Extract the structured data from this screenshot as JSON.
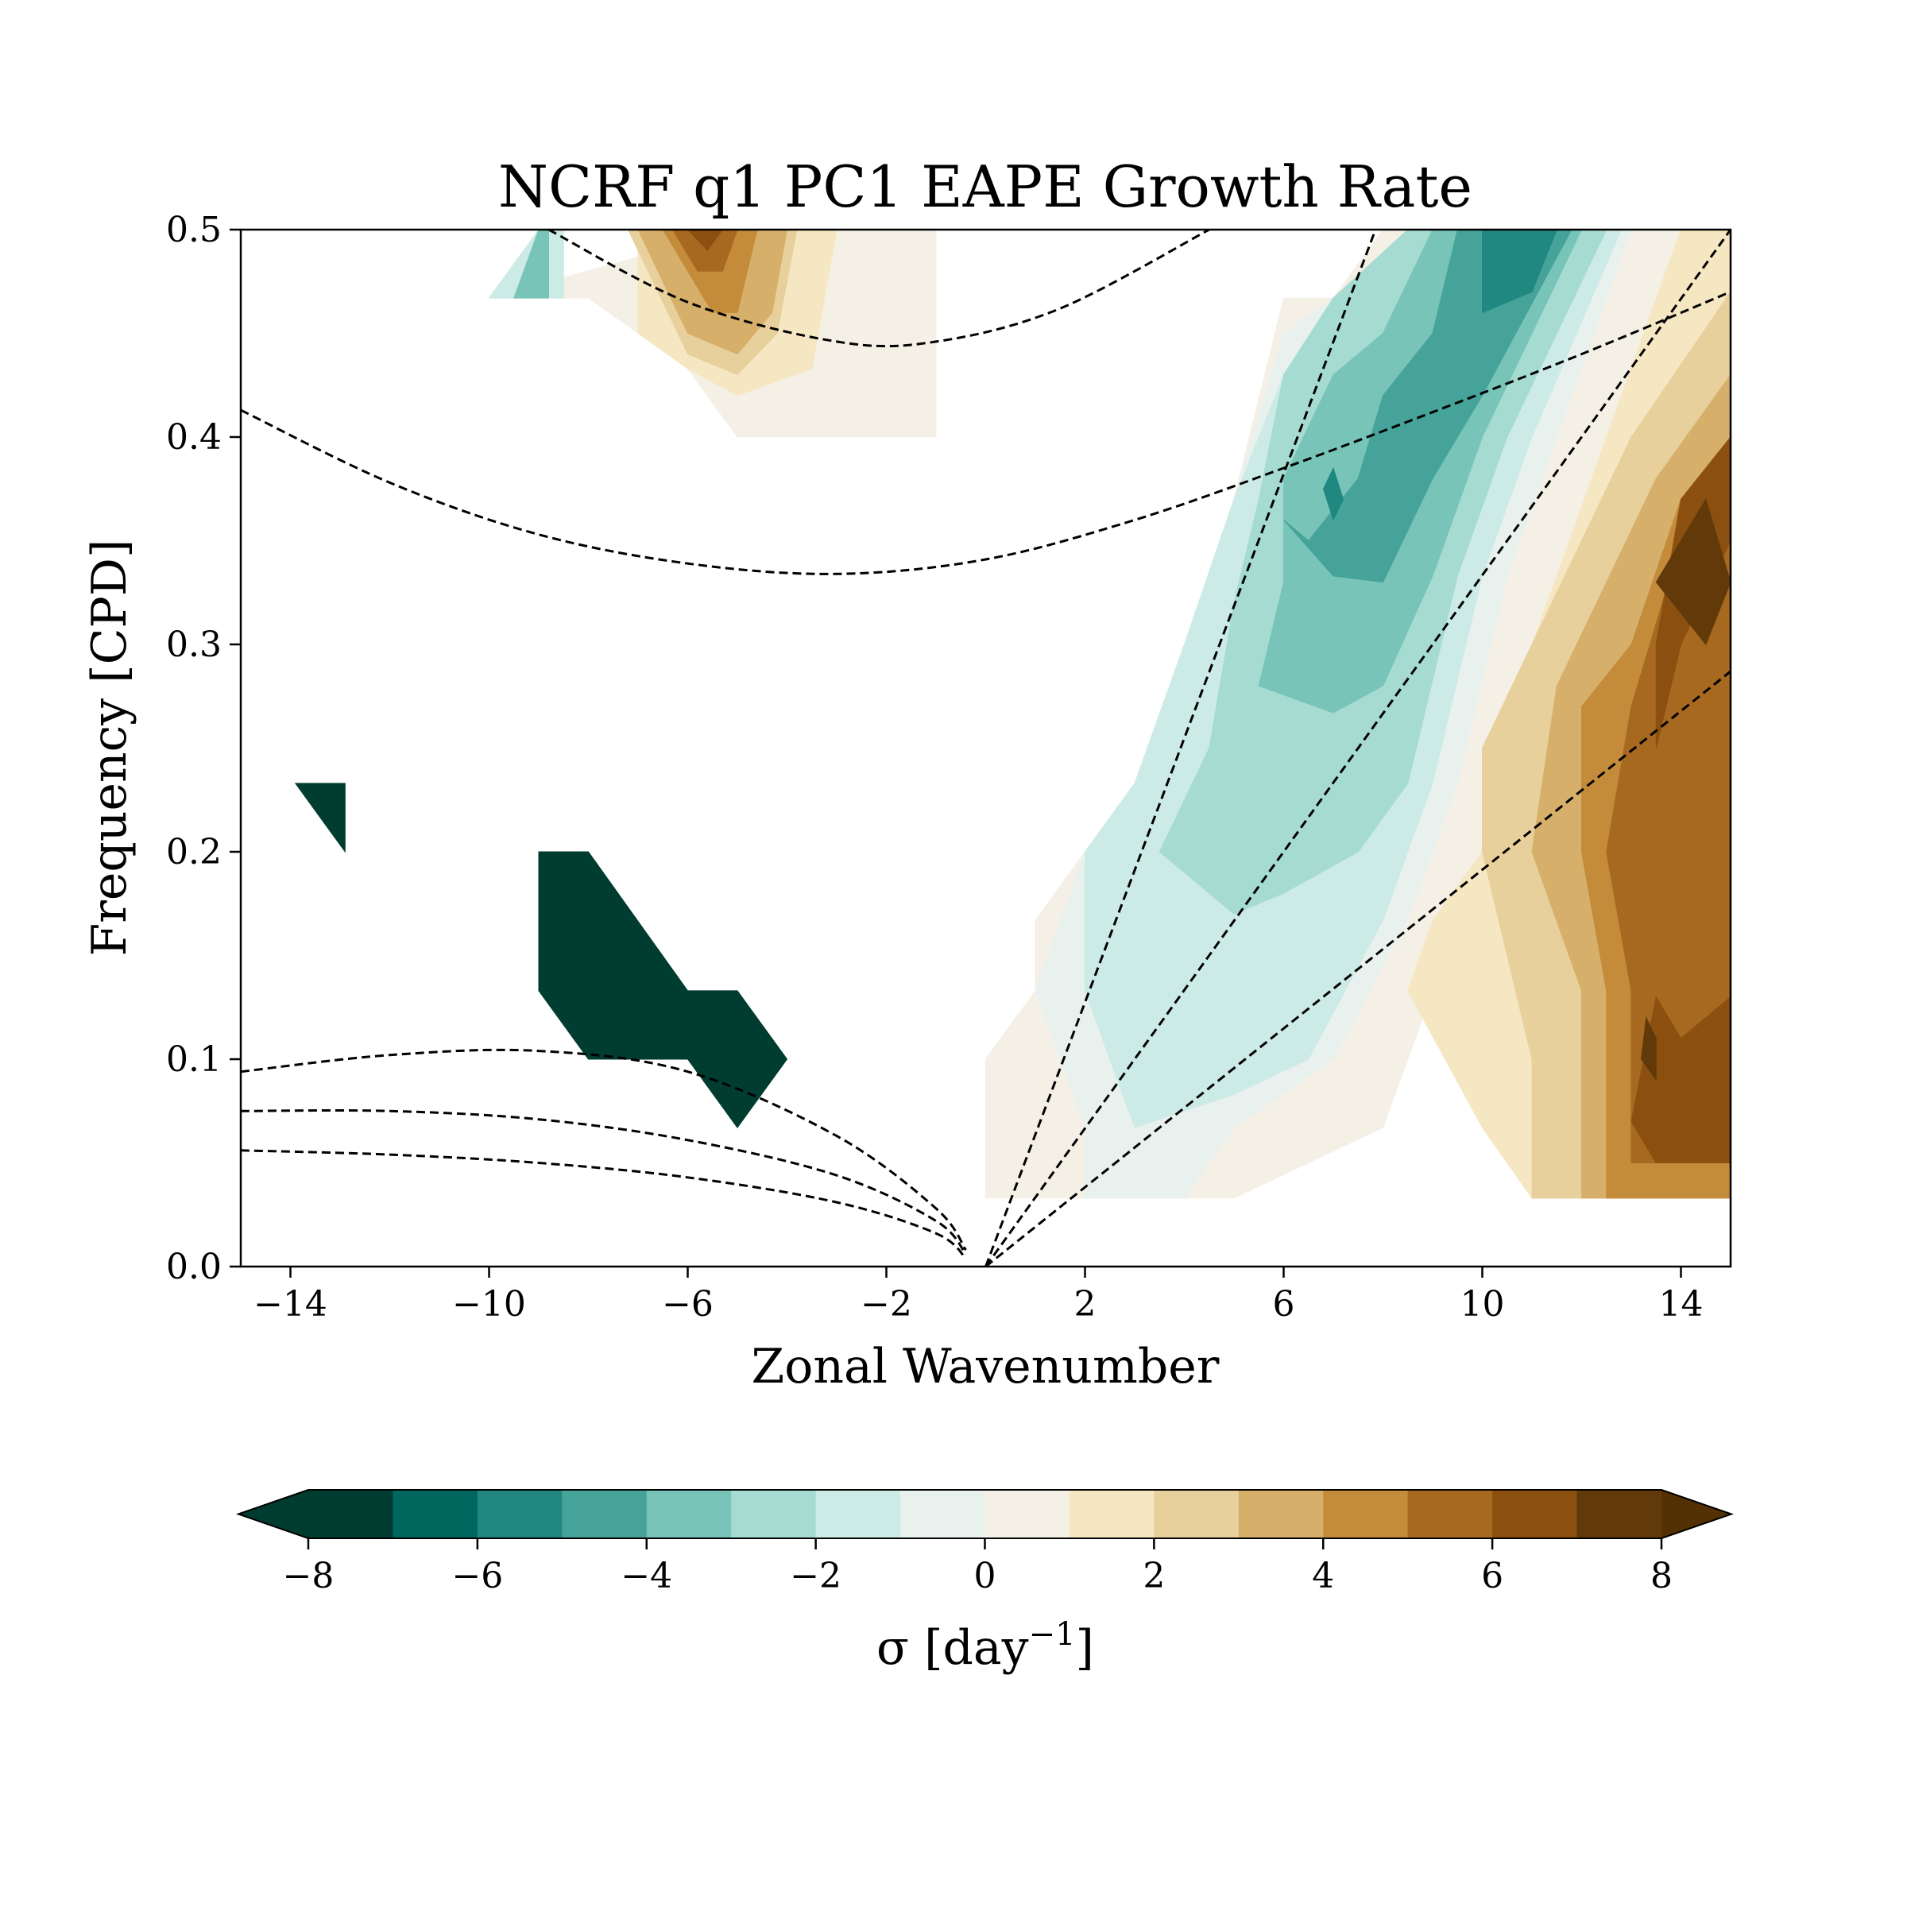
{
  "chart_data": {
    "type": "heatmap",
    "title": "NCRF q1 PC1 EAPE Growth Rate",
    "xlabel": "Zonal Wavenumber",
    "ylabel": "Frequency [CPD]",
    "xlim": [
      -15,
      15
    ],
    "ylim": [
      0.0,
      0.5
    ],
    "xticks": [
      -14,
      -10,
      -6,
      -2,
      2,
      6,
      10,
      14
    ],
    "xtick_labels": [
      "−14",
      "−10",
      "−6",
      "−2",
      "2",
      "6",
      "10",
      "14"
    ],
    "yticks": [
      0.0,
      0.1,
      0.2,
      0.3,
      0.4,
      0.5
    ],
    "ytick_labels": [
      "0.0",
      "0.1",
      "0.2",
      "0.3",
      "0.4",
      "0.5"
    ],
    "grid": false,
    "colorbar": {
      "label": "σ [day",
      "label_exponent": "−1",
      "label_close": "]",
      "levels": [
        -8,
        -7,
        -6,
        -5,
        -4,
        -3,
        -2,
        -1,
        0,
        1,
        2,
        3,
        4,
        5,
        6,
        7,
        8
      ],
      "ticks": [
        -8,
        -6,
        -4,
        -2,
        0,
        2,
        4,
        6,
        8
      ],
      "tick_labels": [
        "−8",
        "−6",
        "−4",
        "−2",
        "0",
        "2",
        "4",
        "6",
        "8"
      ],
      "colors": [
        "#003c30",
        "#01665e",
        "#208781",
        "#45a39a",
        "#78c4b9",
        "#a6dbd1",
        "#cdebe6",
        "#e9f1ef",
        "#f4f0e6",
        "#f6e7c3",
        "#e8d09c",
        "#d6b06b",
        "#c38b3a",
        "#a76820",
        "#8b5010",
        "#623a0a"
      ],
      "extend_low_color": "#003c30",
      "extend_high_color": "#543005",
      "extend": "both",
      "orientation": "horizontal"
    },
    "dispersion_curves_style": "dashed black",
    "field_regions": [
      {
        "value": -7.5,
        "points": [
          [
            -13.9,
            0.233
          ],
          [
            -12.9,
            0.233
          ],
          [
            -12.9,
            0.2
          ],
          [
            -13.9,
            0.233
          ]
        ]
      },
      {
        "value": -7.5,
        "points": [
          [
            -9.0,
            0.2
          ],
          [
            -8.0,
            0.2
          ],
          [
            -6.0,
            0.133
          ],
          [
            -5.0,
            0.133
          ],
          [
            -4.0,
            0.1
          ],
          [
            -5.0,
            0.067
          ],
          [
            -6.0,
            0.1
          ],
          [
            -8.0,
            0.1
          ],
          [
            -9.0,
            0.133
          ]
        ]
      },
      {
        "value": 0.5,
        "points": [
          [
            0.0,
            0.033
          ],
          [
            0.0,
            0.1
          ],
          [
            1.0,
            0.133
          ],
          [
            1.0,
            0.167
          ],
          [
            2.0,
            0.2
          ],
          [
            3.0,
            0.233
          ],
          [
            4.0,
            0.3
          ],
          [
            5.0,
            0.37
          ],
          [
            6.0,
            0.467
          ],
          [
            7.0,
            0.467
          ],
          [
            8.0,
            0.5
          ],
          [
            15.0,
            0.5
          ],
          [
            15.0,
            0.033
          ],
          [
            11.0,
            0.033
          ],
          [
            11.0,
            0.067
          ],
          [
            10.0,
            0.1
          ],
          [
            9.0,
            0.133
          ],
          [
            8.0,
            0.067
          ],
          [
            5.0,
            0.033
          ]
        ]
      },
      {
        "value": -0.5,
        "points": [
          [
            2.0,
            0.033
          ],
          [
            2.0,
            0.067
          ],
          [
            1.0,
            0.133
          ],
          [
            2.0,
            0.2
          ],
          [
            3.0,
            0.233
          ],
          [
            4.0,
            0.3
          ],
          [
            5.0,
            0.37
          ],
          [
            6.0,
            0.45
          ],
          [
            7.0,
            0.467
          ],
          [
            8.5,
            0.5
          ],
          [
            13.0,
            0.5
          ],
          [
            11.5,
            0.4
          ],
          [
            10.5,
            0.333
          ],
          [
            9.5,
            0.233
          ],
          [
            8.5,
            0.167
          ],
          [
            7.0,
            0.1
          ],
          [
            5.0,
            0.067
          ],
          [
            4.0,
            0.033
          ]
        ]
      },
      {
        "value": -1.5,
        "points": [
          [
            3.0,
            0.067
          ],
          [
            2.0,
            0.133
          ],
          [
            2.0,
            0.2
          ],
          [
            3.0,
            0.233
          ],
          [
            4.0,
            0.3
          ],
          [
            5.0,
            0.37
          ],
          [
            6.0,
            0.43
          ],
          [
            7.0,
            0.467
          ],
          [
            8.5,
            0.5
          ],
          [
            12.8,
            0.5
          ],
          [
            11.0,
            0.4
          ],
          [
            10.0,
            0.333
          ],
          [
            9.0,
            0.233
          ],
          [
            8.0,
            0.167
          ],
          [
            6.5,
            0.1
          ],
          [
            5.0,
            0.083
          ]
        ]
      },
      {
        "value": -2.5,
        "points": [
          [
            3.5,
            0.2
          ],
          [
            4.5,
            0.25
          ],
          [
            5.0,
            0.32
          ],
          [
            5.5,
            0.37
          ],
          [
            6.0,
            0.43
          ],
          [
            7.0,
            0.467
          ],
          [
            8.5,
            0.5
          ],
          [
            12.5,
            0.5
          ],
          [
            10.5,
            0.4
          ],
          [
            9.5,
            0.333
          ],
          [
            8.5,
            0.233
          ],
          [
            7.5,
            0.2
          ],
          [
            6.0,
            0.18
          ],
          [
            5.0,
            0.17
          ]
        ]
      },
      {
        "value": -3.5,
        "points": [
          [
            5.5,
            0.28
          ],
          [
            6.0,
            0.33
          ],
          [
            6.0,
            0.38
          ],
          [
            7.0,
            0.43
          ],
          [
            8.0,
            0.45
          ],
          [
            9.0,
            0.5
          ],
          [
            12.0,
            0.5
          ],
          [
            10.0,
            0.4
          ],
          [
            9.0,
            0.333
          ],
          [
            8.0,
            0.28
          ],
          [
            7.0,
            0.267
          ]
        ]
      },
      {
        "value": -4.5,
        "points": [
          [
            6.0,
            0.36
          ],
          [
            6.5,
            0.35
          ],
          [
            7.5,
            0.38
          ],
          [
            8.0,
            0.42
          ],
          [
            9.0,
            0.45
          ],
          [
            9.5,
            0.5
          ],
          [
            11.8,
            0.5
          ],
          [
            10.0,
            0.42
          ],
          [
            9.0,
            0.38
          ],
          [
            8.0,
            0.33
          ],
          [
            7.0,
            0.333
          ]
        ]
      },
      {
        "value": -5.5,
        "points": [
          [
            10.0,
            0.5
          ],
          [
            11.5,
            0.5
          ],
          [
            11.0,
            0.47
          ],
          [
            10.0,
            0.46
          ]
        ]
      },
      {
        "value": -5.5,
        "points": [
          [
            6.8,
            0.375
          ],
          [
            7.0,
            0.385
          ],
          [
            7.2,
            0.37
          ],
          [
            7.0,
            0.36
          ]
        ]
      },
      {
        "value": 1.5,
        "points": [
          [
            8.5,
            0.133
          ],
          [
            10.0,
            0.067
          ],
          [
            11.0,
            0.033
          ],
          [
            15.0,
            0.033
          ],
          [
            15.0,
            0.5
          ],
          [
            14.0,
            0.5
          ],
          [
            12.5,
            0.4
          ],
          [
            11.5,
            0.333
          ],
          [
            10.5,
            0.267
          ],
          [
            10.0,
            0.2
          ],
          [
            9.0,
            0.167
          ]
        ]
      },
      {
        "value": 2.5,
        "points": [
          [
            10.0,
            0.2
          ],
          [
            11.0,
            0.1
          ],
          [
            11.0,
            0.033
          ],
          [
            15.0,
            0.033
          ],
          [
            15.0,
            0.47
          ],
          [
            13.0,
            0.4
          ],
          [
            12.0,
            0.35
          ],
          [
            11.0,
            0.3
          ],
          [
            10.0,
            0.25
          ]
        ]
      },
      {
        "value": 3.5,
        "points": [
          [
            11.0,
            0.2
          ],
          [
            12.0,
            0.133
          ],
          [
            12.0,
            0.033
          ],
          [
            15.0,
            0.033
          ],
          [
            15.0,
            0.43
          ],
          [
            13.5,
            0.38
          ],
          [
            12.5,
            0.33
          ],
          [
            11.5,
            0.28
          ]
        ]
      },
      {
        "value": 4.5,
        "points": [
          [
            12.0,
            0.2
          ],
          [
            12.5,
            0.133
          ],
          [
            12.5,
            0.033
          ],
          [
            15.0,
            0.033
          ],
          [
            15.0,
            0.4
          ],
          [
            14.0,
            0.37
          ],
          [
            13.0,
            0.3
          ],
          [
            12.0,
            0.27
          ]
        ]
      },
      {
        "value": 5.5,
        "points": [
          [
            12.5,
            0.2
          ],
          [
            13.0,
            0.133
          ],
          [
            13.0,
            0.05
          ],
          [
            15.0,
            0.05
          ],
          [
            15.0,
            0.38
          ],
          [
            14.0,
            0.35
          ],
          [
            13.0,
            0.27
          ]
        ]
      },
      {
        "value": 6.5,
        "points": [
          [
            13.0,
            0.07
          ],
          [
            13.5,
            0.05
          ],
          [
            15.0,
            0.05
          ],
          [
            15.0,
            0.13
          ],
          [
            14.0,
            0.11
          ],
          [
            13.5,
            0.13
          ]
        ]
      },
      {
        "value": 6.5,
        "points": [
          [
            13.5,
            0.25
          ],
          [
            14.0,
            0.3
          ],
          [
            15.0,
            0.35
          ],
          [
            15.0,
            0.4
          ],
          [
            14.0,
            0.37
          ],
          [
            13.5,
            0.3
          ]
        ]
      },
      {
        "value": 7.5,
        "points": [
          [
            13.2,
            0.1
          ],
          [
            13.5,
            0.09
          ],
          [
            13.5,
            0.11
          ],
          [
            13.3,
            0.12
          ]
        ]
      },
      {
        "value": 7.5,
        "points": [
          [
            13.5,
            0.33
          ],
          [
            14.5,
            0.3
          ],
          [
            15.0,
            0.33
          ],
          [
            14.5,
            0.37
          ],
          [
            14.0,
            0.35
          ]
        ]
      },
      {
        "value": 0.5,
        "points": [
          [
            -10.0,
            0.467
          ],
          [
            -5.0,
            0.5
          ],
          [
            -1.0,
            0.5
          ],
          [
            -1.0,
            0.4
          ],
          [
            -5.0,
            0.4
          ],
          [
            -6.0,
            0.433
          ],
          [
            -8.0,
            0.467
          ]
        ]
      },
      {
        "value": 1.5,
        "points": [
          [
            -7.0,
            0.5
          ],
          [
            -3.0,
            0.5
          ],
          [
            -3.5,
            0.433
          ],
          [
            -5.0,
            0.42
          ],
          [
            -6.0,
            0.433
          ],
          [
            -7.0,
            0.45
          ]
        ]
      },
      {
        "value": 2.5,
        "points": [
          [
            -7.2,
            0.5
          ],
          [
            -3.8,
            0.5
          ],
          [
            -4.2,
            0.45
          ],
          [
            -5.0,
            0.43
          ],
          [
            -6.0,
            0.44
          ]
        ]
      },
      {
        "value": 3.5,
        "points": [
          [
            -7.0,
            0.5
          ],
          [
            -4.0,
            0.5
          ],
          [
            -4.3,
            0.46
          ],
          [
            -5.0,
            0.44
          ],
          [
            -6.0,
            0.45
          ]
        ]
      },
      {
        "value": 4.5,
        "points": [
          [
            -6.5,
            0.5
          ],
          [
            -4.6,
            0.5
          ],
          [
            -5.0,
            0.46
          ],
          [
            -5.5,
            0.46
          ]
        ]
      },
      {
        "value": 5.5,
        "points": [
          [
            -6.3,
            0.5
          ],
          [
            -5.0,
            0.5
          ],
          [
            -5.3,
            0.48
          ],
          [
            -5.8,
            0.48
          ]
        ]
      },
      {
        "value": 6.5,
        "points": [
          [
            -6.0,
            0.5
          ],
          [
            -5.3,
            0.5
          ],
          [
            -5.6,
            0.49
          ]
        ]
      },
      {
        "value": -1.5,
        "points": [
          [
            -10.0,
            0.467
          ],
          [
            -9.0,
            0.5
          ],
          [
            -8.5,
            0.5
          ],
          [
            -8.5,
            0.467
          ]
        ]
      },
      {
        "value": -3.5,
        "points": [
          [
            -9.5,
            0.467
          ],
          [
            -9.0,
            0.5
          ],
          [
            -8.8,
            0.5
          ],
          [
            -8.8,
            0.467
          ]
        ]
      }
    ],
    "dispersion_curves": [
      {
        "x": [
          0,
          7.85
        ],
        "y": [
          0,
          0.5
        ]
      },
      {
        "x": [
          0,
          15
        ],
        "y": [
          0,
          0.5
        ]
      },
      {
        "x": [
          0,
          15
        ],
        "y": [
          0,
          0.287
        ]
      },
      {
        "x": [
          -15,
          -12,
          -9,
          -6,
          -3,
          0,
          3,
          6,
          9,
          12,
          15
        ],
        "y": [
          0.413,
          0.378,
          0.353,
          0.339,
          0.334,
          0.341,
          0.36,
          0.385,
          0.412,
          0.44,
          0.47
        ]
      },
      {
        "x": [
          -8.8,
          -6,
          -3,
          -1,
          1.5,
          4.5
        ],
        "y": [
          0.5,
          0.465,
          0.446,
          0.446,
          0.462,
          0.5
        ]
      },
      {
        "x": [
          -15,
          -12,
          -9,
          -6,
          -3,
          -1,
          -0.4
        ],
        "y": [
          0.094,
          0.102,
          0.104,
          0.094,
          0.063,
          0.028,
          0.008
        ]
      },
      {
        "x": [
          -15,
          -12,
          -9,
          -6,
          -3,
          -1,
          -0.4
        ],
        "y": [
          0.075,
          0.075,
          0.071,
          0.061,
          0.044,
          0.022,
          0.006
        ]
      },
      {
        "x": [
          -15,
          -12,
          -9,
          -6,
          -3,
          -1,
          -0.4
        ],
        "y": [
          0.056,
          0.054,
          0.05,
          0.043,
          0.031,
          0.016,
          0.004
        ]
      }
    ]
  }
}
